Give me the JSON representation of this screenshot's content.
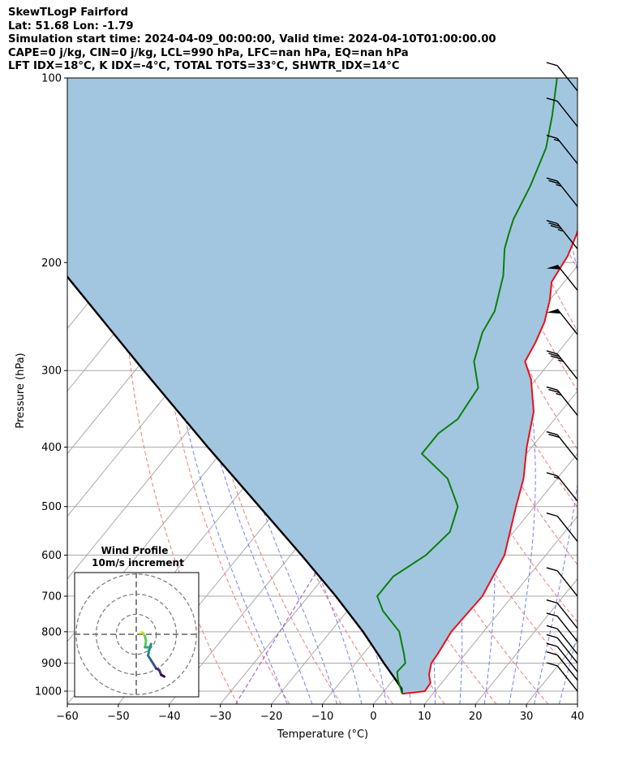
{
  "header": {
    "line1": "SkewTLogP Fairford",
    "line2": "Lat: 51.68   Lon: -1.79",
    "line3": "Simulation start time: 2024-04-09_00:00:00, Valid time: 2024-04-10T01:00:00.00",
    "line4": "CAPE=0 j/kg, CIN=0 j/kg, LCL=990 hPa, LFC=nan hPa, EQ=nan hPa",
    "line5": "LFT IDX=18°C, K IDX=-4°C, TOTAL TOTS=33°C, SHWTR_IDX=14°C"
  },
  "inset": {
    "title": "Wind Profile",
    "subtitle": "10m/s increment"
  },
  "colors": {
    "temperature": "#e8101a",
    "dewpoint": "#0a800a",
    "parcel": "#000000",
    "cape_fill": "#a3c6e0",
    "dry_adiabat": "#f26a6a",
    "moist_adiabat": "#5a6af2",
    "mixing_ratio": "#9b4fc2",
    "isotherm": "#aaaaaa"
  },
  "chart_data": {
    "type": "line",
    "xlabel": "Temperature (°C)",
    "ylabel": "Pressure (hPa)",
    "xlim": [
      -60,
      40
    ],
    "ylim": [
      1050,
      100
    ],
    "y_scale": "log",
    "x_ticks": [
      "−60",
      "−50",
      "−40",
      "−30",
      "−20",
      "−10",
      "0",
      "10",
      "20",
      "30",
      "40"
    ],
    "x_tick_values": [
      -60,
      -50,
      -40,
      -30,
      -20,
      -10,
      0,
      10,
      20,
      30,
      40
    ],
    "y_ticks": [
      "1000",
      "900",
      "800",
      "700",
      "600",
      "500",
      "400",
      "300",
      "200",
      "100"
    ],
    "y_tick_values": [
      1000,
      900,
      800,
      700,
      600,
      500,
      400,
      300,
      200,
      100
    ],
    "grid": true,
    "series": [
      {
        "role": "temperature",
        "points": [
          [
            1010,
            4
          ],
          [
            1000,
            8
          ],
          [
            970,
            7.8
          ],
          [
            940,
            6.2
          ],
          [
            900,
            4.8
          ],
          [
            870,
            4.6
          ],
          [
            800,
            3.7
          ],
          [
            700,
            4.1
          ],
          [
            600,
            1.9
          ],
          [
            500,
            -3.6
          ],
          [
            450,
            -6.6
          ],
          [
            400,
            -11
          ],
          [
            350,
            -15.3
          ],
          [
            310,
            -21
          ],
          [
            290,
            -25
          ],
          [
            270,
            -26
          ],
          [
            250,
            -27.5
          ],
          [
            230,
            -30
          ],
          [
            215,
            -32.5
          ],
          [
            195,
            -33.5
          ],
          [
            180,
            -35.2
          ],
          [
            160,
            -38.2
          ],
          [
            140,
            -41
          ],
          [
            125,
            -43.8
          ],
          [
            115,
            -46
          ],
          [
            105,
            -48.8
          ],
          [
            100,
            -50
          ]
        ]
      },
      {
        "role": "dewpoint",
        "points": [
          [
            1010,
            4
          ],
          [
            960,
            1
          ],
          [
            930,
            -0.5
          ],
          [
            900,
            -0.3
          ],
          [
            870,
            -2
          ],
          [
            800,
            -6.5
          ],
          [
            740,
            -13
          ],
          [
            700,
            -16.5
          ],
          [
            650,
            -16.5
          ],
          [
            600,
            -13.5
          ],
          [
            550,
            -12.5
          ],
          [
            500,
            -15
          ],
          [
            450,
            -21.5
          ],
          [
            410,
            -30.5
          ],
          [
            380,
            -30.5
          ],
          [
            360,
            -29
          ],
          [
            320,
            -30
          ],
          [
            290,
            -35
          ],
          [
            260,
            -38
          ],
          [
            240,
            -39
          ],
          [
            210,
            -43
          ],
          [
            190,
            -47
          ],
          [
            180,
            -48.5
          ],
          [
            170,
            -50
          ],
          [
            150,
            -52
          ],
          [
            130,
            -55
          ],
          [
            115,
            -59
          ],
          [
            100,
            -64
          ]
        ]
      },
      {
        "role": "parcel",
        "points": [
          [
            1010,
            4
          ],
          [
            990,
            3
          ],
          [
            950,
            -0.2
          ],
          [
            900,
            -4.5
          ],
          [
            850,
            -8.9
          ],
          [
            800,
            -13.6
          ],
          [
            700,
            -24.6
          ],
          [
            600,
            -37.9
          ],
          [
            500,
            -53.9
          ],
          [
            400,
            -73.5
          ],
          [
            300,
            -98.3
          ],
          [
            200,
            -132.8
          ],
          [
            150,
            -156.5
          ],
          [
            100,
            -189.3
          ]
        ]
      }
    ],
    "wind_barbs": [
      {
        "p": 1000,
        "speed": 10
      },
      {
        "p": 960,
        "speed": 10
      },
      {
        "p": 930,
        "speed": 10
      },
      {
        "p": 900,
        "speed": 10
      },
      {
        "p": 870,
        "speed": 10
      },
      {
        "p": 830,
        "speed": 10
      },
      {
        "p": 790,
        "speed": 10
      },
      {
        "p": 700,
        "speed": 10
      },
      {
        "p": 570,
        "speed": 10
      },
      {
        "p": 490,
        "speed": 15
      },
      {
        "p": 420,
        "speed": 20
      },
      {
        "p": 355,
        "speed": 25
      },
      {
        "p": 310,
        "speed": 35
      },
      {
        "p": 262,
        "speed": 50
      },
      {
        "p": 222,
        "speed": 50
      },
      {
        "p": 190,
        "speed": 35
      },
      {
        "p": 162,
        "speed": 25
      },
      {
        "p": 138,
        "speed": 15
      },
      {
        "p": 120,
        "speed": 10
      },
      {
        "p": 105,
        "speed": 10
      }
    ],
    "hodograph_points": [
      [
        -2.5,
        0.7
      ],
      [
        -1.5,
        0.4
      ],
      [
        -0.5,
        -0.6
      ],
      [
        0,
        -2
      ],
      [
        -0.5,
        -4
      ],
      [
        2,
        -4
      ],
      [
        2.5,
        -3
      ],
      [
        1.5,
        -5
      ],
      [
        1,
        -6.5
      ],
      [
        2.5,
        -8
      ],
      [
        4,
        -9.5
      ],
      [
        5,
        -10.5
      ],
      [
        6.5,
        -11
      ],
      [
        7.5,
        -12.5
      ],
      [
        9,
        -13
      ]
    ]
  }
}
